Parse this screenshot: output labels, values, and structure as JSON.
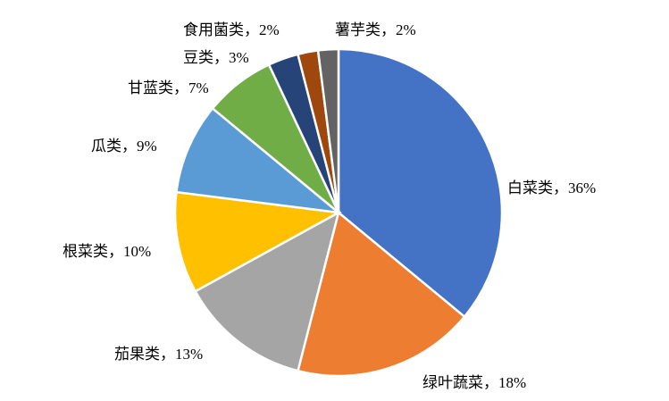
{
  "chart_data": {
    "type": "pie",
    "categories": [
      "白菜类",
      "绿叶蔬菜",
      "茄果类",
      "根菜类",
      "瓜类",
      "甘蓝类",
      "豆类",
      "食用菌类",
      "薯芋类"
    ],
    "values": [
      36,
      18,
      13,
      10,
      9,
      7,
      3,
      2,
      2
    ],
    "value_labels": [
      "36%",
      "18%",
      "13%",
      "10%",
      "9%",
      "7%",
      "3%",
      "2%",
      "2%"
    ],
    "label_separator": "，",
    "colors": [
      "#4472c4",
      "#ed7d31",
      "#a5a5a5",
      "#ffc000",
      "#5b9bd5",
      "#70ad47",
      "#264478",
      "#9e480e",
      "#636363"
    ]
  }
}
